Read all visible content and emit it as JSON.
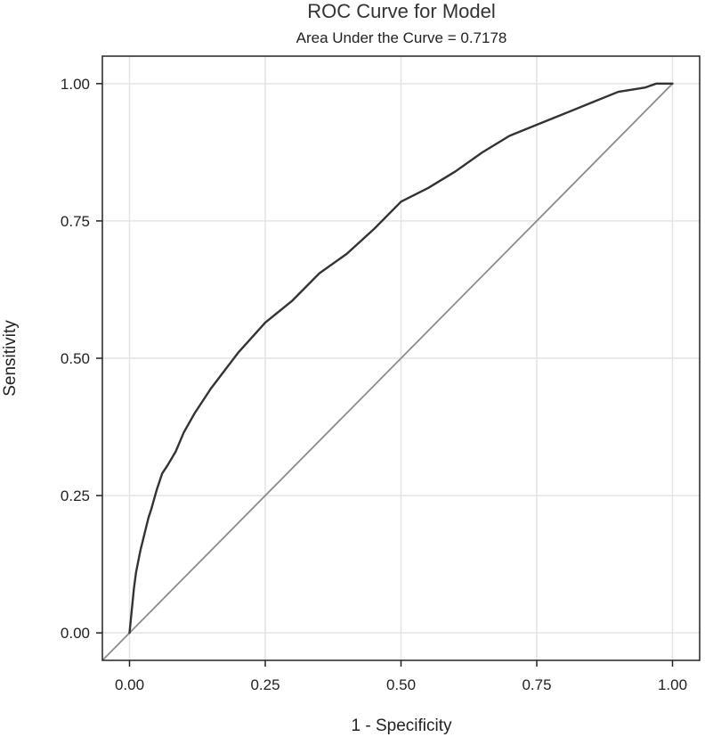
{
  "chart_data": {
    "type": "line",
    "title": "ROC Curve for Model",
    "subtitle": "Area Under the Curve = 0.7178",
    "xlabel": "1 - Specificity",
    "ylabel": "Sensitivity",
    "xlim": [
      -0.05,
      1.05
    ],
    "ylim": [
      -0.05,
      1.05
    ],
    "grid": true,
    "x_ticks": [
      0,
      0.25,
      0.5,
      0.75,
      1
    ],
    "x_tick_labels": [
      "0.00",
      "0.25",
      "0.50",
      "0.75",
      "1.00"
    ],
    "y_ticks": [
      0,
      0.25,
      0.5,
      0.75,
      1
    ],
    "y_tick_labels": [
      "0.00",
      "0.25",
      "0.50",
      "0.75",
      "1.00"
    ],
    "series": [
      {
        "color": "#333333",
        "x": [
          0,
          0.002,
          0.004,
          0.006,
          0.008,
          0.012,
          0.016,
          0.02,
          0.025,
          0.03,
          0.035,
          0.04,
          0.05,
          0.06,
          0.07,
          0.085,
          0.1,
          0.12,
          0.15,
          0.2,
          0.25,
          0.3,
          0.35,
          0.4,
          0.45,
          0.5,
          0.55,
          0.6,
          0.65,
          0.7,
          0.75,
          0.8,
          0.85,
          0.9,
          0.95,
          0.97,
          0.99,
          1
        ],
        "y": [
          0,
          0.02,
          0.04,
          0.06,
          0.08,
          0.11,
          0.13,
          0.15,
          0.17,
          0.19,
          0.21,
          0.225,
          0.26,
          0.29,
          0.305,
          0.33,
          0.365,
          0.4,
          0.445,
          0.51,
          0.565,
          0.605,
          0.655,
          0.69,
          0.735,
          0.785,
          0.81,
          0.84,
          0.875,
          0.905,
          0.925,
          0.945,
          0.965,
          0.985,
          0.993,
          1,
          1,
          1
        ]
      },
      {
        "color": "#8c8c8c",
        "x": [
          -0.05,
          1
        ],
        "y": [
          -0.05,
          1
        ]
      }
    ]
  }
}
